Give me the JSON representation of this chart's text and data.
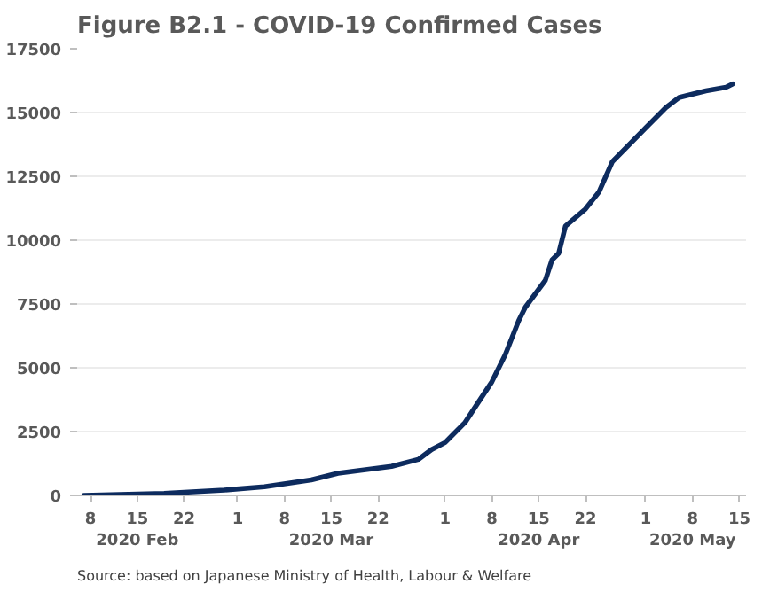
{
  "chart_data": {
    "type": "line",
    "title": "Figure B2.1 - COVID-19 Confirmed Cases",
    "x": [
      "2020-02-07",
      "2020-02-19",
      "2020-02-28",
      "2020-03-05",
      "2020-03-12",
      "2020-03-16",
      "2020-03-24",
      "2020-03-28",
      "2020-03-30",
      "2020-04-01",
      "2020-04-04",
      "2020-04-06",
      "2020-04-08",
      "2020-04-10",
      "2020-04-12",
      "2020-04-13",
      "2020-04-16",
      "2020-04-17",
      "2020-04-18",
      "2020-04-19",
      "2020-04-22",
      "2020-04-24",
      "2020-04-26",
      "2020-04-28",
      "2020-05-01",
      "2020-05-04",
      "2020-05-06",
      "2020-05-10",
      "2020-05-13",
      "2020-05-14"
    ],
    "series": [
      {
        "color": "#0d2b5e",
        "values": [
          0,
          80,
          210,
          340,
          610,
          870,
          1140,
          1410,
          1800,
          2070,
          2860,
          3660,
          4450,
          5510,
          6840,
          7370,
          8430,
          9230,
          9490,
          10550,
          11220,
          11880,
          13070,
          13600,
          14400,
          15190,
          15590,
          15850,
          15990,
          16120
        ]
      }
    ],
    "xlim": [
      "2020-02-06",
      "2020-05-16"
    ],
    "xticks": [
      {
        "value": "2020-02-08",
        "label": "8"
      },
      {
        "value": "2020-02-15",
        "label": "15\n2020 Feb"
      },
      {
        "value": "2020-02-22",
        "label": "22"
      },
      {
        "value": "2020-03-01",
        "label": "1"
      },
      {
        "value": "2020-03-08",
        "label": "8"
      },
      {
        "value": "2020-03-15",
        "label": "15\n2020 Mar"
      },
      {
        "value": "2020-03-22",
        "label": "22"
      },
      {
        "value": "2020-04-01",
        "label": "1"
      },
      {
        "value": "2020-04-08",
        "label": "8"
      },
      {
        "value": "2020-04-15",
        "label": "15\n2020 Apr"
      },
      {
        "value": "2020-04-22",
        "label": "22"
      },
      {
        "value": "2020-05-01",
        "label": "1"
      },
      {
        "value": "2020-05-08",
        "label": "8\n2020 May"
      },
      {
        "value": "2020-05-15",
        "label": "15"
      }
    ],
    "ylim": [
      0,
      17500
    ],
    "yticks": [
      0,
      2500,
      5000,
      7500,
      10000,
      12500,
      15000,
      17500
    ],
    "grid": "y",
    "marker": "none",
    "line_style": "solid",
    "annotations": [
      "Source: based on Japanese Ministry of Health, Labour & Welfare"
    ]
  }
}
